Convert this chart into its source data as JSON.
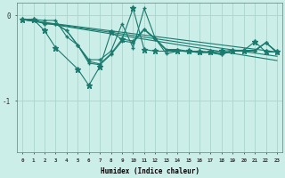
{
  "xlabel": "Humidex (Indice chaleur)",
  "bg_color": "#cceee8",
  "line_color": "#1a7a6e",
  "grid_color": "#aad4cc",
  "ylim": [
    -1.6,
    0.15
  ],
  "xlim": [
    -0.5,
    23.5
  ],
  "ytick_pos": [
    -1,
    0
  ],
  "ytick_labels": [
    "-1",
    "0"
  ],
  "xtick_labels": [
    "0",
    "1",
    "2",
    "3",
    "4",
    "5",
    "6",
    "7",
    "8",
    "9",
    "10",
    "11",
    "12",
    "13",
    "14",
    "15",
    "16",
    "17",
    "18",
    "19",
    "20",
    "21",
    "22",
    "23"
  ],
  "zigzag_series": [
    {
      "x": [
        0,
        1,
        2,
        3,
        4,
        5,
        6,
        7,
        8,
        9,
        10,
        11,
        12,
        13,
        14,
        15,
        16,
        17,
        18,
        19,
        20,
        21,
        22,
        23
      ],
      "y": [
        -0.05,
        -0.05,
        -0.06,
        -0.06,
        -0.25,
        -0.35,
        -0.52,
        -0.52,
        -0.42,
        -0.1,
        -0.38,
        0.08,
        -0.27,
        -0.45,
        -0.42,
        -0.42,
        -0.44,
        -0.43,
        -0.44,
        -0.42,
        -0.42,
        -0.42,
        -0.32,
        -0.43
      ],
      "marker": "+"
    },
    {
      "x": [
        0,
        1,
        2,
        3,
        4,
        5,
        6,
        7,
        8,
        9,
        10,
        11,
        12,
        13,
        14,
        15,
        16,
        17,
        18,
        19,
        20,
        21,
        22,
        23
      ],
      "y": [
        -0.05,
        -0.05,
        -0.1,
        -0.1,
        -0.18,
        -0.35,
        -0.54,
        -0.57,
        -0.45,
        -0.28,
        -0.3,
        -0.16,
        -0.27,
        -0.4,
        -0.4,
        -0.42,
        -0.42,
        -0.43,
        -0.46,
        -0.41,
        -0.41,
        -0.41,
        -0.32,
        -0.43
      ],
      "marker": "+"
    },
    {
      "x": [
        0,
        1,
        2,
        3,
        4,
        5,
        6,
        7,
        8,
        9,
        10,
        11,
        12,
        13,
        14,
        15,
        16,
        17,
        18,
        19,
        20,
        21,
        22,
        23
      ],
      "y": [
        -0.05,
        -0.05,
        -0.1,
        -0.1,
        -0.18,
        -0.35,
        -0.56,
        -0.58,
        -0.46,
        -0.3,
        -0.32,
        -0.17,
        -0.28,
        -0.41,
        -0.41,
        -0.43,
        -0.43,
        -0.44,
        -0.46,
        -0.41,
        -0.41,
        -0.41,
        -0.32,
        -0.44
      ],
      "marker": "+"
    },
    {
      "x": [
        0,
        1,
        2,
        3,
        5,
        6,
        7,
        8,
        9,
        10,
        11,
        12,
        14,
        15,
        16,
        17,
        18,
        19,
        20,
        21,
        22,
        23
      ],
      "y": [
        -0.05,
        -0.05,
        -0.18,
        -0.38,
        -0.63,
        -0.82,
        -0.6,
        -0.2,
        -0.28,
        0.08,
        -0.4,
        -0.42,
        -0.42,
        -0.42,
        -0.43,
        -0.43,
        -0.42,
        -0.41,
        -0.41,
        -0.31,
        -0.43,
        -0.43
      ],
      "marker": "*"
    }
  ],
  "regression_lines": [
    {
      "x0": 0,
      "y0": -0.05,
      "x1": 23,
      "y1": -0.43
    },
    {
      "x0": 0,
      "y0": -0.05,
      "x1": 23,
      "y1": -0.48
    },
    {
      "x0": 0,
      "y0": -0.05,
      "x1": 23,
      "y1": -0.53
    }
  ]
}
